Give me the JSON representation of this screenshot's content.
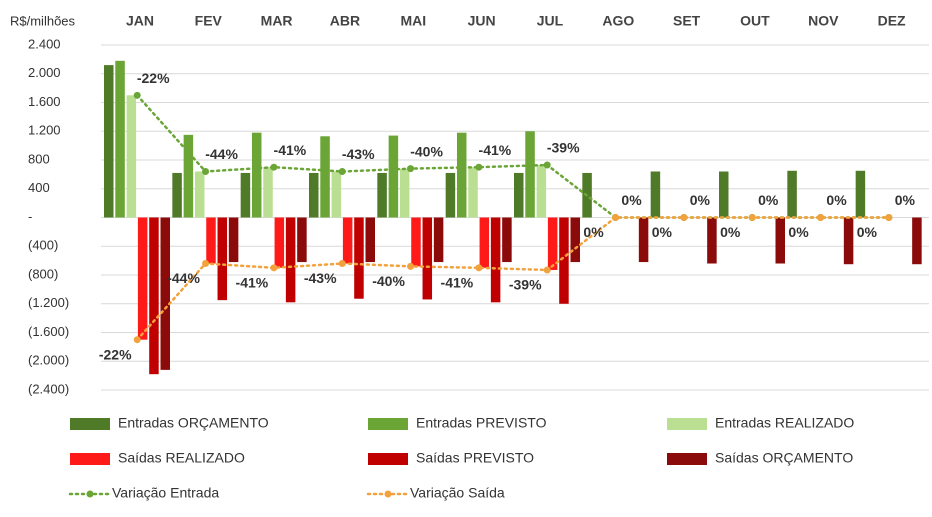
{
  "chart_data": {
    "type": "bar",
    "y_label": "R$/milhões",
    "categories": [
      "JAN",
      "FEV",
      "MAR",
      "ABR",
      "MAI",
      "JUN",
      "JUL",
      "AGO",
      "SET",
      "OUT",
      "NOV",
      "DEZ"
    ],
    "ylim": [
      -2400,
      2400
    ],
    "yticks": [
      {
        "value": 2400,
        "label": "2.400"
      },
      {
        "value": 2000,
        "label": "2.000"
      },
      {
        "value": 1600,
        "label": "1.600"
      },
      {
        "value": 1200,
        "label": "1.200"
      },
      800,
      400,
      {
        "value": 0,
        "label": "-"
      },
      {
        "value": -400,
        "label": "(400)"
      },
      {
        "value": -800,
        "label": "(800)"
      },
      {
        "value": -1200,
        "label": "(1.200)"
      },
      {
        "value": -1600,
        "label": "(1.600)"
      },
      {
        "value": -2000,
        "label": "(2.000)"
      },
      {
        "value": -2400,
        "label": "(2.400)"
      }
    ],
    "grid": true,
    "series": [
      {
        "name": "Entradas ORÇAMENTO",
        "type": "bar",
        "color": "#4f7a28",
        "values": [
          2120,
          620,
          620,
          620,
          620,
          620,
          620,
          620,
          640,
          640,
          650,
          650
        ]
      },
      {
        "name": "Entradas PREVISTO",
        "type": "bar",
        "color": "#6aa536",
        "values": [
          2180,
          1150,
          1180,
          1130,
          1140,
          1180,
          1200,
          null,
          null,
          null,
          null,
          null
        ]
      },
      {
        "name": "Entradas REALIZADO",
        "type": "bar",
        "color": "#badf92",
        "values": [
          1700,
          640,
          700,
          640,
          680,
          700,
          730,
          null,
          null,
          null,
          null,
          null
        ]
      },
      {
        "name": "Saídas REALIZADO",
        "type": "bar",
        "color": "#ff1a1a",
        "values": [
          -1700,
          -640,
          -700,
          -640,
          -680,
          -700,
          -730,
          null,
          null,
          null,
          null,
          null
        ]
      },
      {
        "name": "Saídas PREVISTO",
        "type": "bar",
        "color": "#c00000",
        "values": [
          -2180,
          -1150,
          -1180,
          -1130,
          -1140,
          -1180,
          -1200,
          null,
          null,
          null,
          null,
          null
        ]
      },
      {
        "name": "Saídas ORÇAMENTO",
        "type": "bar",
        "color": "#8b0a0a",
        "values": [
          -2120,
          -620,
          -620,
          -620,
          -620,
          -620,
          -620,
          -620,
          -640,
          -640,
          -650,
          -650
        ]
      },
      {
        "name": "Variação Entrada",
        "type": "line",
        "color": "#6aa536",
        "values": [
          1700,
          640,
          700,
          640,
          680,
          700,
          730,
          0,
          0,
          0,
          0,
          0
        ],
        "point_labels": [
          "-22%",
          "-44%",
          "-41%",
          "-43%",
          "-40%",
          "-41%",
          "-39%",
          "0%",
          "0%",
          "0%",
          "0%",
          "0%"
        ]
      },
      {
        "name": "Variação Saída",
        "type": "line",
        "color": "#f2a23c",
        "values": [
          -1700,
          -640,
          -700,
          -640,
          -680,
          -700,
          -730,
          0,
          0,
          0,
          0,
          0
        ],
        "point_labels": [
          "-22%",
          "-44%",
          "-41%",
          "-43%",
          "-40%",
          "-41%",
          "-39%",
          "0%",
          "0%",
          "0%",
          "0%",
          "0%"
        ]
      }
    ]
  }
}
